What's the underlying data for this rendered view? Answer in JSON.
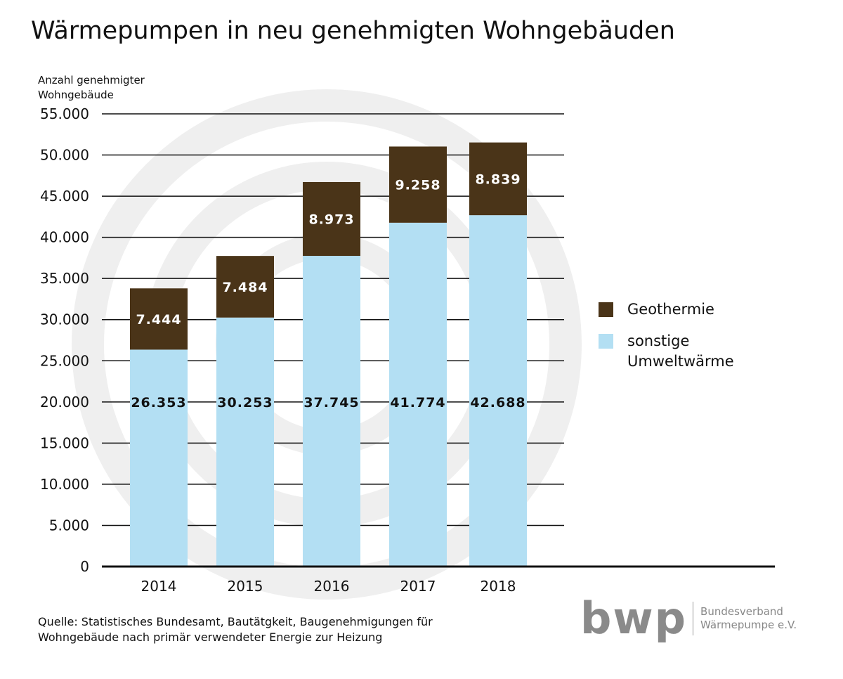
{
  "title": "Wärmepumpen in neu genehmigten Wohngebäuden",
  "source": "Quelle: Statistisches Bundesamt, Bautätgkeit, Baugenehmigungen für Wohngebäude nach primär verwendeter Energie zur Heizung",
  "logo": {
    "mark": "bwp",
    "line1": "Bundesverband",
    "line2": "Wärmepumpe e.V."
  },
  "chart_data": {
    "type": "bar",
    "stacked": true,
    "title": "Wärmepumpen in neu genehmigten Wohngebäuden",
    "ylabel": "Anzahl genehmigter Wohngebäude",
    "xlabel": "",
    "categories": [
      "2014",
      "2015",
      "2016",
      "2017",
      "2018"
    ],
    "series": [
      {
        "name": "sonstige Umweltwärme",
        "color": "#b3dff3",
        "values": [
          26353,
          30253,
          37745,
          41774,
          42688
        ],
        "labels": [
          "26.353",
          "30.253",
          "37.745",
          "41.774",
          "42.688"
        ]
      },
      {
        "name": "Geothermie",
        "color": "#4a3418",
        "values": [
          7444,
          7484,
          8973,
          9258,
          8839
        ],
        "labels": [
          "7.444",
          "7.484",
          "8.973",
          "9.258",
          "8.839"
        ]
      }
    ],
    "ylim": [
      0,
      55000
    ],
    "yticks": [
      0,
      5000,
      10000,
      15000,
      20000,
      25000,
      30000,
      35000,
      40000,
      45000,
      50000,
      55000
    ],
    "ytick_labels": [
      "0",
      "5.000",
      "10.000",
      "15.000",
      "20.000",
      "25.000",
      "30.000",
      "35.000",
      "40.000",
      "45.000",
      "50.000",
      "55.000"
    ],
    "grid": true,
    "legend": {
      "placement": "right",
      "entries": [
        "Geothermie",
        "sonstige Umweltwärme"
      ]
    }
  }
}
